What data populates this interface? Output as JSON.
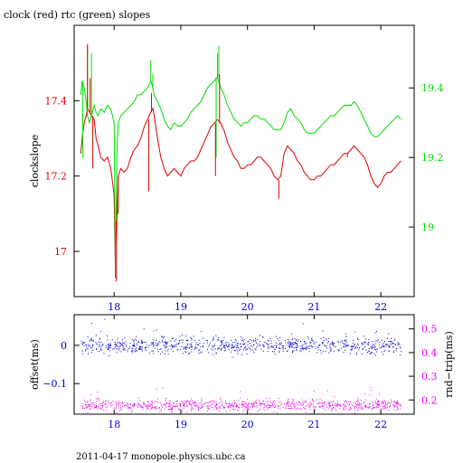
{
  "title": "clock (red) rtc (green) slopes",
  "footer": "2011-04-17 monopole.physics.ubc.ca",
  "colors": {
    "red": "#dd0000",
    "green": "#00dd00",
    "blue": "#0000cc",
    "magenta": "#ee00ee",
    "frame": "#000000"
  },
  "chart_data": [
    {
      "type": "line",
      "title": "clock (red) rtc (green) slopes",
      "ylabel": "clockslope",
      "y2label": "",
      "xlim": [
        17.4,
        22.5
      ],
      "ylim": [
        16.88,
        17.6
      ],
      "y2lim": [
        18.8,
        19.58
      ],
      "x_ticks": [
        "18",
        "19",
        "20",
        "21",
        "22"
      ],
      "y_ticks": [
        "17",
        "17.2",
        "17.4"
      ],
      "y2_ticks": [
        "19",
        "19.2",
        "19.4"
      ],
      "series": [
        {
          "axis": "left",
          "color": "#dd0000",
          "points": [
            [
              17.5,
              17.26
            ],
            [
              17.52,
              17.3
            ],
            [
              17.55,
              17.34
            ],
            [
              17.58,
              17.36
            ],
            [
              17.6,
              17.38
            ],
            [
              17.63,
              17.37
            ],
            [
              17.66,
              17.36
            ],
            [
              17.7,
              17.35
            ],
            [
              17.73,
              17.3
            ],
            [
              17.76,
              17.28
            ],
            [
              17.8,
              17.25
            ],
            [
              17.85,
              17.24
            ],
            [
              17.9,
              17.25
            ],
            [
              17.95,
              17.22
            ],
            [
              18.0,
              17.15
            ],
            [
              18.02,
              16.93
            ],
            [
              18.04,
              17.08
            ],
            [
              18.06,
              17.2
            ],
            [
              18.1,
              17.22
            ],
            [
              18.15,
              17.21
            ],
            [
              18.2,
              17.22
            ],
            [
              18.25,
              17.25
            ],
            [
              18.3,
              17.27
            ],
            [
              18.35,
              17.28
            ],
            [
              18.4,
              17.3
            ],
            [
              18.45,
              17.33
            ],
            [
              18.5,
              17.35
            ],
            [
              18.55,
              17.37
            ],
            [
              18.58,
              17.38
            ],
            [
              18.6,
              17.36
            ],
            [
              18.65,
              17.3
            ],
            [
              18.7,
              17.25
            ],
            [
              18.75,
              17.22
            ],
            [
              18.8,
              17.2
            ],
            [
              18.85,
              17.21
            ],
            [
              18.9,
              17.22
            ],
            [
              18.95,
              17.21
            ],
            [
              19.0,
              17.2
            ],
            [
              19.05,
              17.22
            ],
            [
              19.1,
              17.23
            ],
            [
              19.15,
              17.24
            ],
            [
              19.2,
              17.24
            ],
            [
              19.25,
              17.25
            ],
            [
              19.3,
              17.27
            ],
            [
              19.35,
              17.29
            ],
            [
              19.4,
              17.31
            ],
            [
              19.45,
              17.33
            ],
            [
              19.5,
              17.34
            ],
            [
              19.55,
              17.35
            ],
            [
              19.6,
              17.34
            ],
            [
              19.65,
              17.32
            ],
            [
              19.7,
              17.29
            ],
            [
              19.75,
              17.27
            ],
            [
              19.8,
              17.25
            ],
            [
              19.85,
              17.24
            ],
            [
              19.9,
              17.22
            ],
            [
              19.95,
              17.22
            ],
            [
              20.0,
              17.23
            ],
            [
              20.05,
              17.23
            ],
            [
              20.1,
              17.24
            ],
            [
              20.15,
              17.25
            ],
            [
              20.2,
              17.25
            ],
            [
              20.25,
              17.24
            ],
            [
              20.3,
              17.23
            ],
            [
              20.35,
              17.22
            ],
            [
              20.4,
              17.2
            ],
            [
              20.45,
              17.19
            ],
            [
              20.5,
              17.2
            ],
            [
              20.55,
              17.26
            ],
            [
              20.6,
              17.28
            ],
            [
              20.65,
              17.27
            ],
            [
              20.7,
              17.26
            ],
            [
              20.75,
              17.24
            ],
            [
              20.8,
              17.23
            ],
            [
              20.85,
              17.21
            ],
            [
              20.9,
              17.2
            ],
            [
              20.95,
              17.19
            ],
            [
              21.0,
              17.19
            ],
            [
              21.05,
              17.2
            ],
            [
              21.1,
              17.2
            ],
            [
              21.15,
              17.21
            ],
            [
              21.2,
              17.22
            ],
            [
              21.25,
              17.23
            ],
            [
              21.3,
              17.23
            ],
            [
              21.35,
              17.24
            ],
            [
              21.4,
              17.25
            ],
            [
              21.45,
              17.26
            ],
            [
              21.5,
              17.26
            ],
            [
              21.55,
              17.27
            ],
            [
              21.6,
              17.28
            ],
            [
              21.65,
              17.27
            ],
            [
              21.7,
              17.26
            ],
            [
              21.75,
              17.25
            ],
            [
              21.8,
              17.23
            ],
            [
              21.85,
              17.2
            ],
            [
              21.9,
              17.18
            ],
            [
              21.95,
              17.17
            ],
            [
              22.0,
              17.18
            ],
            [
              22.05,
              17.2
            ],
            [
              22.1,
              17.21
            ],
            [
              22.15,
              17.21
            ],
            [
              22.2,
              17.22
            ],
            [
              22.25,
              17.23
            ],
            [
              22.3,
              17.24
            ]
          ]
        },
        {
          "axis": "right",
          "color": "#00dd00",
          "points": [
            [
              17.5,
              19.38
            ],
            [
              17.52,
              19.42
            ],
            [
              17.55,
              19.4
            ],
            [
              17.58,
              19.36
            ],
            [
              17.6,
              19.32
            ],
            [
              17.63,
              19.3
            ],
            [
              17.66,
              19.32
            ],
            [
              17.7,
              19.35
            ],
            [
              17.73,
              19.33
            ],
            [
              17.76,
              19.32
            ],
            [
              17.8,
              19.34
            ],
            [
              17.85,
              19.33
            ],
            [
              17.9,
              19.35
            ],
            [
              17.95,
              19.34
            ],
            [
              18.0,
              19.3
            ],
            [
              18.02,
              18.86
            ],
            [
              18.04,
              19.2
            ],
            [
              18.06,
              19.3
            ],
            [
              18.1,
              19.32
            ],
            [
              18.15,
              19.33
            ],
            [
              18.2,
              19.34
            ],
            [
              18.25,
              19.35
            ],
            [
              18.3,
              19.36
            ],
            [
              18.35,
              19.38
            ],
            [
              18.4,
              19.38
            ],
            [
              18.45,
              19.39
            ],
            [
              18.5,
              19.4
            ],
            [
              18.55,
              19.42
            ],
            [
              18.58,
              19.4
            ],
            [
              18.6,
              19.38
            ],
            [
              18.65,
              19.36
            ],
            [
              18.7,
              19.34
            ],
            [
              18.75,
              19.31
            ],
            [
              18.8,
              19.29
            ],
            [
              18.85,
              19.28
            ],
            [
              18.9,
              19.3
            ],
            [
              18.95,
              19.29
            ],
            [
              19.0,
              19.29
            ],
            [
              19.05,
              19.3
            ],
            [
              19.1,
              19.31
            ],
            [
              19.15,
              19.33
            ],
            [
              19.2,
              19.34
            ],
            [
              19.25,
              19.35
            ],
            [
              19.3,
              19.36
            ],
            [
              19.35,
              19.38
            ],
            [
              19.4,
              19.4
            ],
            [
              19.45,
              19.41
            ],
            [
              19.5,
              19.42
            ],
            [
              19.55,
              19.43
            ],
            [
              19.6,
              19.4
            ],
            [
              19.65,
              19.38
            ],
            [
              19.7,
              19.35
            ],
            [
              19.75,
              19.33
            ],
            [
              19.8,
              19.31
            ],
            [
              19.85,
              19.3
            ],
            [
              19.9,
              19.29
            ],
            [
              19.95,
              19.3
            ],
            [
              20.0,
              19.3
            ],
            [
              20.05,
              19.31
            ],
            [
              20.1,
              19.32
            ],
            [
              20.15,
              19.32
            ],
            [
              20.2,
              19.31
            ],
            [
              20.25,
              19.31
            ],
            [
              20.3,
              19.3
            ],
            [
              20.35,
              19.29
            ],
            [
              20.4,
              19.28
            ],
            [
              20.45,
              19.28
            ],
            [
              20.5,
              19.28
            ],
            [
              20.55,
              19.3
            ],
            [
              20.6,
              19.33
            ],
            [
              20.65,
              19.34
            ],
            [
              20.7,
              19.32
            ],
            [
              20.75,
              19.31
            ],
            [
              20.8,
              19.3
            ],
            [
              20.85,
              19.28
            ],
            [
              20.9,
              19.27
            ],
            [
              20.95,
              19.27
            ],
            [
              21.0,
              19.27
            ],
            [
              21.05,
              19.28
            ],
            [
              21.1,
              19.29
            ],
            [
              21.15,
              19.3
            ],
            [
              21.2,
              19.31
            ],
            [
              21.25,
              19.32
            ],
            [
              21.3,
              19.32
            ],
            [
              21.35,
              19.33
            ],
            [
              21.4,
              19.34
            ],
            [
              21.45,
              19.35
            ],
            [
              21.5,
              19.35
            ],
            [
              21.55,
              19.35
            ],
            [
              21.6,
              19.36
            ],
            [
              21.65,
              19.35
            ],
            [
              21.7,
              19.33
            ],
            [
              21.75,
              19.31
            ],
            [
              21.8,
              19.29
            ],
            [
              21.85,
              19.27
            ],
            [
              21.9,
              19.26
            ],
            [
              21.95,
              19.26
            ],
            [
              22.0,
              19.27
            ],
            [
              22.05,
              19.28
            ],
            [
              22.1,
              19.29
            ],
            [
              22.15,
              19.3
            ],
            [
              22.2,
              19.31
            ],
            [
              22.25,
              19.32
            ],
            [
              22.3,
              19.31
            ]
          ],
          "spikes": [
            [
              17.6,
              19.52
            ],
            [
              17.66,
              19.5
            ],
            [
              18.55,
              19.48
            ],
            [
              18.58,
              19.44
            ],
            [
              19.57,
              19.52
            ],
            [
              19.55,
              19.5
            ],
            [
              17.53,
              19.2
            ],
            [
              19.53,
              19.2
            ]
          ]
        }
      ],
      "red_spikes": [
        [
          17.6,
          17.55
        ],
        [
          17.64,
          17.46
        ],
        [
          17.68,
          17.22
        ],
        [
          18.03,
          16.92
        ],
        [
          18.06,
          17.1
        ],
        [
          18.52,
          17.16
        ],
        [
          18.56,
          17.42
        ],
        [
          19.58,
          17.47
        ],
        [
          19.52,
          17.2
        ],
        [
          20.47,
          17.14
        ],
        [
          20.58,
          17.28
        ],
        [
          21.5,
          17.25
        ]
      ]
    },
    {
      "type": "scatter",
      "title": "",
      "ylabel": "offset(ms)",
      "y2label": "rnd−trip(ms)",
      "xlim": [
        17.4,
        22.5
      ],
      "ylim": [
        -0.18,
        0.08
      ],
      "y2lim": [
        0.14,
        0.56
      ],
      "x_ticks": [
        "18",
        "19",
        "20",
        "21",
        "22"
      ],
      "y_ticks": [
        "−0.1",
        "0"
      ],
      "y2_ticks": [
        "0.2",
        "0.3",
        "0.4",
        "0.5"
      ],
      "series": [
        {
          "axis": "left",
          "color": "#0000cc",
          "center": 0.0,
          "spread": 0.01,
          "x_start": 17.5,
          "x_end": 22.3
        },
        {
          "axis": "right",
          "color": "#ee00ee",
          "center": 0.18,
          "spread": 0.012,
          "x_start": 17.5,
          "x_end": 22.3
        }
      ]
    }
  ]
}
